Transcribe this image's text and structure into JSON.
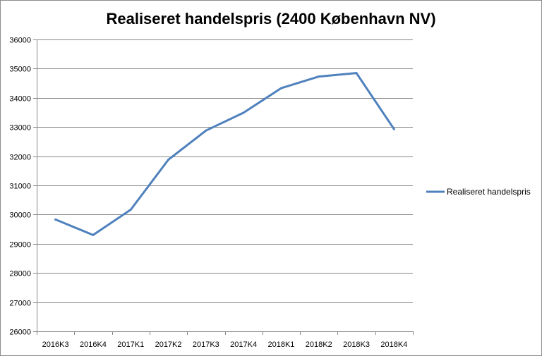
{
  "chart_data": {
    "type": "line",
    "title": "Realiseret handelspris (2400 København NV)",
    "categories": [
      "2016K3",
      "2016K4",
      "2017K1",
      "2017K2",
      "2017K3",
      "2017K4",
      "2018K1",
      "2018K2",
      "2018K3",
      "2018K4"
    ],
    "series": [
      {
        "name": "Realiseret handelspris",
        "values": [
          29830,
          29300,
          30170,
          31880,
          32880,
          33490,
          34330,
          34730,
          34850,
          32930
        ],
        "color": "#4f81bd"
      }
    ],
    "ylim": [
      26000,
      36000
    ],
    "yticks": [
      26000,
      27000,
      28000,
      29000,
      30000,
      31000,
      32000,
      33000,
      34000,
      35000,
      36000
    ],
    "grid": true,
    "legend": "right"
  }
}
